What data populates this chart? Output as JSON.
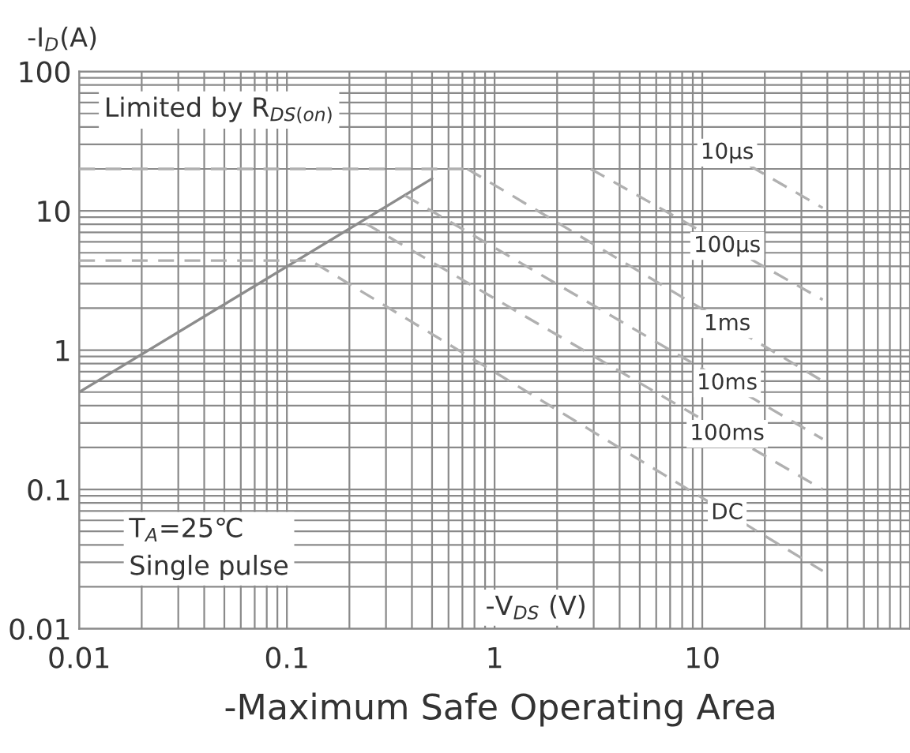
{
  "chart_data": {
    "type": "line",
    "title": "-Maximum Safe Operating Area",
    "xlabel": "-V$_{DS}$ (V)",
    "ylabel": "-I$_{D}$(A)",
    "log": "xy",
    "xlim": [
      0.01,
      100
    ],
    "ylim": [
      0.01,
      100
    ],
    "xticks": [
      0.01,
      0.1,
      1,
      10
    ],
    "yticks": [
      0.01,
      0.1,
      1,
      10,
      100
    ],
    "grid": true,
    "legend": false,
    "annotations": [
      "Limited by R$_{DS(on)}$",
      "T$_{A}$=25℃\nSingle pulse"
    ],
    "series": [
      {
        "color": "#8c8c8c",
        "line_style": "solid",
        "x": [
          0.01,
          0.5
        ],
        "values": [
          0.5,
          17
        ]
      },
      {
        "color": "#b0b0b0",
        "line_style": "dashed",
        "x": [
          0.01,
          0.74
        ],
        "values": [
          20,
          20
        ]
      },
      {
        "name": "10µs",
        "color": "#b0b0b0",
        "line_style": "dashed",
        "x": [
          17,
          38
        ],
        "values": [
          21,
          10.5
        ]
      },
      {
        "name": "100µs",
        "color": "#b0b0b0",
        "line_style": "dashed",
        "x": [
          2.9,
          38
        ],
        "values": [
          20,
          2.3
        ]
      },
      {
        "name": "1ms",
        "color": "#b0b0b0",
        "line_style": "dashed",
        "x": [
          0.74,
          38
        ],
        "values": [
          20,
          0.6
        ]
      },
      {
        "name": "10ms",
        "color": "#b0b0b0",
        "line_style": "dashed",
        "x": [
          0.37,
          38
        ],
        "values": [
          12.9,
          0.23
        ]
      },
      {
        "name": "100ms",
        "color": "#b0b0b0",
        "line_style": "dashed",
        "x": [
          0.24,
          38
        ],
        "values": [
          8.1,
          0.1
        ]
      },
      {
        "name": "DC",
        "color": "#b0b0b0",
        "line_style": "dashed",
        "x": [
          0.01,
          0.13,
          38
        ],
        "values": [
          4.4,
          4.4,
          0.026
        ]
      }
    ]
  }
}
